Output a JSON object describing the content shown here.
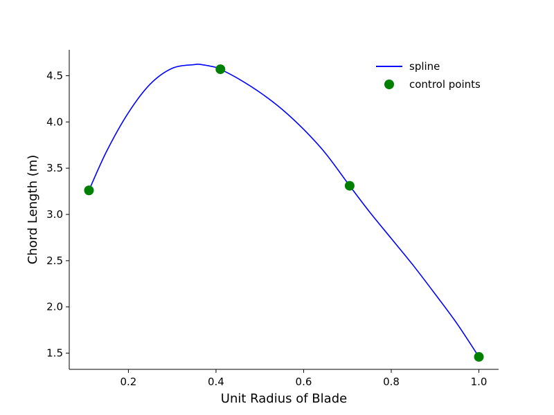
{
  "chart_data": {
    "type": "line",
    "title": "",
    "xlabel": "Unit Radius of Blade",
    "ylabel": "Chord Length (m)",
    "xlim": [
      0.065,
      1.045
    ],
    "ylim": [
      1.325,
      4.78
    ],
    "x_ticks": [
      0.2,
      0.4,
      0.6,
      0.8,
      1.0
    ],
    "x_tick_labels": [
      "0.2",
      "0.4",
      "0.6",
      "0.8",
      "1.0"
    ],
    "y_ticks": [
      1.5,
      2.0,
      2.5,
      3.0,
      3.5,
      4.0,
      4.5
    ],
    "y_tick_labels": [
      "1.5",
      "2.0",
      "2.5",
      "3.0",
      "3.5",
      "4.0",
      "4.5"
    ],
    "grid": false,
    "legend_position": "top-right",
    "series": [
      {
        "name": "spline",
        "kind": "line",
        "color": "#0000ff",
        "x": [
          0.11,
          0.15,
          0.2,
          0.25,
          0.3,
          0.35,
          0.367,
          0.4,
          0.41,
          0.45,
          0.5,
          0.55,
          0.6,
          0.65,
          0.705,
          0.75,
          0.8,
          0.85,
          0.9,
          0.95,
          1.0
        ],
        "y": [
          3.26,
          3.68,
          4.1,
          4.41,
          4.58,
          4.62,
          4.62,
          4.59,
          4.57,
          4.47,
          4.32,
          4.14,
          3.92,
          3.66,
          3.31,
          3.03,
          2.74,
          2.45,
          2.14,
          1.82,
          1.46
        ]
      },
      {
        "name": "control points",
        "kind": "scatter",
        "color": "#008000",
        "x": [
          0.11,
          0.41,
          0.705,
          1.0
        ],
        "y": [
          3.26,
          4.57,
          3.31,
          1.46
        ]
      }
    ]
  }
}
